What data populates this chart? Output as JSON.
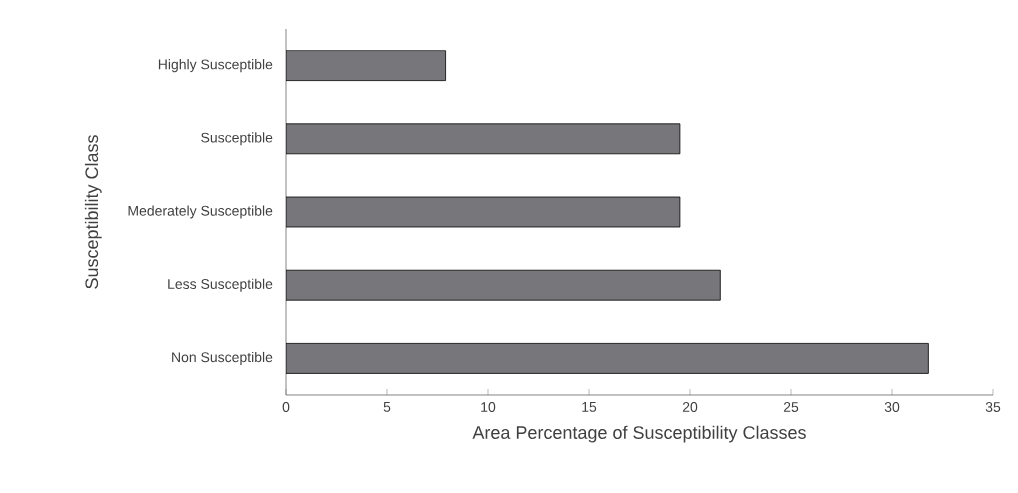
{
  "chart_data": {
    "type": "bar",
    "orientation": "horizontal",
    "xlabel": "Area Percentage of Susceptibility Classes",
    "ylabel": "Susceptibility Class",
    "categories": [
      "Highly Susceptible",
      "Susceptible",
      "Mederately Susceptible",
      "Less Susceptible",
      "Non Susceptible"
    ],
    "values": [
      7.9,
      19.5,
      19.5,
      21.5,
      31.8
    ],
    "color": "#77777b",
    "xlim": [
      0,
      35
    ],
    "xticks": [
      0,
      5,
      10,
      15,
      20,
      25,
      30,
      35
    ],
    "grid": false
  }
}
